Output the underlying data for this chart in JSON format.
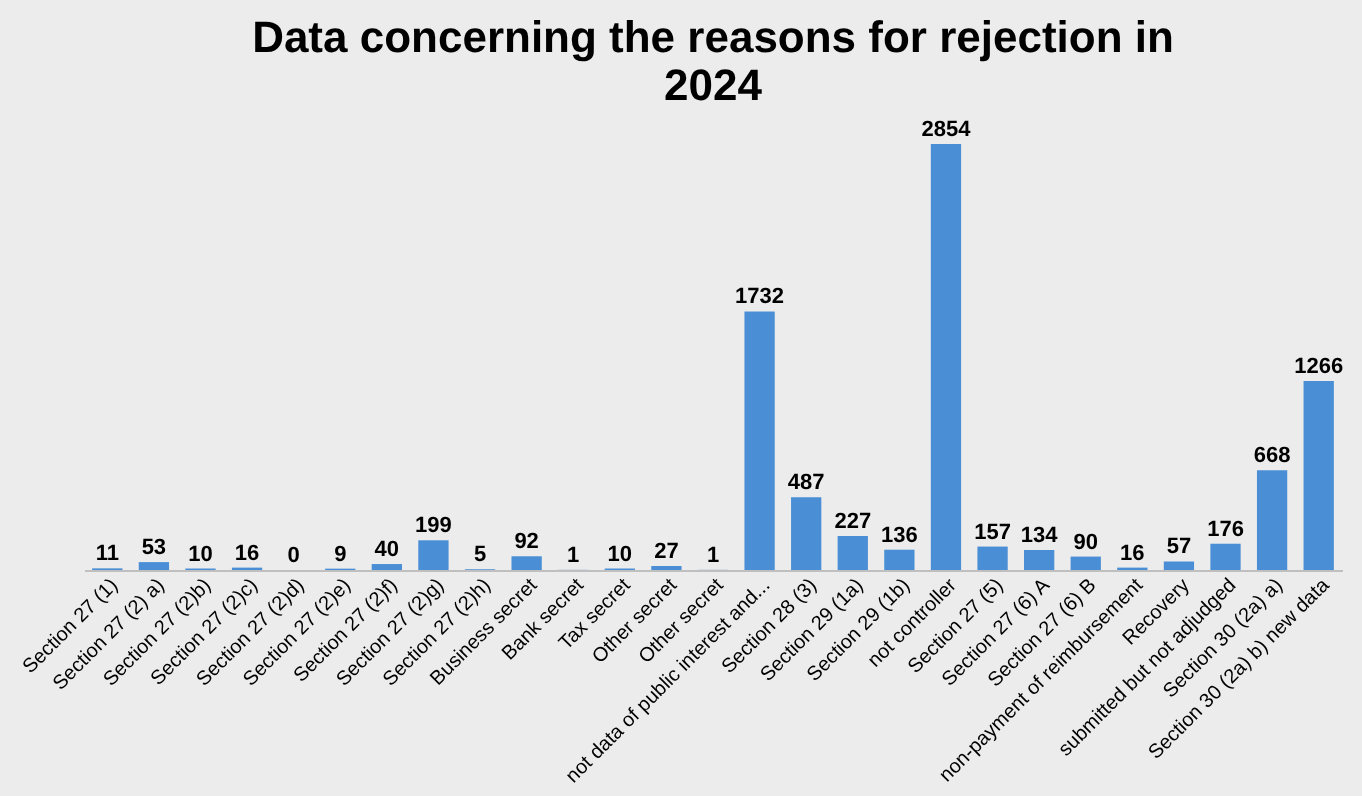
{
  "chart_data": {
    "type": "bar",
    "title": "Data concerning the reasons for rejection in 2024",
    "categories": [
      "Section 27 (1)",
      "Section 27 (2) a)",
      "Section 27 (2)b)",
      "Section 27 (2)c)",
      "Section 27 (2)d)",
      "Section 27 (2)e)",
      "Section 27 (2)f)",
      "Section 27 (2)g)",
      "Section 27 (2)h)",
      "Business secret",
      "Bank secret",
      "Tax secret",
      "Other secret",
      "Other secret",
      "not data of public interest and...",
      "Section 28 (3)",
      "Section 29 (1a)",
      "Section 29 (1b)",
      "not controller",
      "Section 27 (5)",
      "Section 27 (6) A",
      "Section 27 (6) B",
      "non-payment of reimbursement",
      "Recovery",
      "submitted but not adjudged",
      "Section 30 (2a) a)",
      "Section 30 (2a) b) new data"
    ],
    "values": [
      11,
      53,
      10,
      16,
      0,
      9,
      40,
      199,
      5,
      92,
      1,
      10,
      27,
      1,
      1732,
      487,
      227,
      136,
      2854,
      157,
      134,
      90,
      16,
      57,
      176,
      668,
      1266
    ],
    "color": "#4a8fd6",
    "data_labels": true,
    "grid": false
  }
}
